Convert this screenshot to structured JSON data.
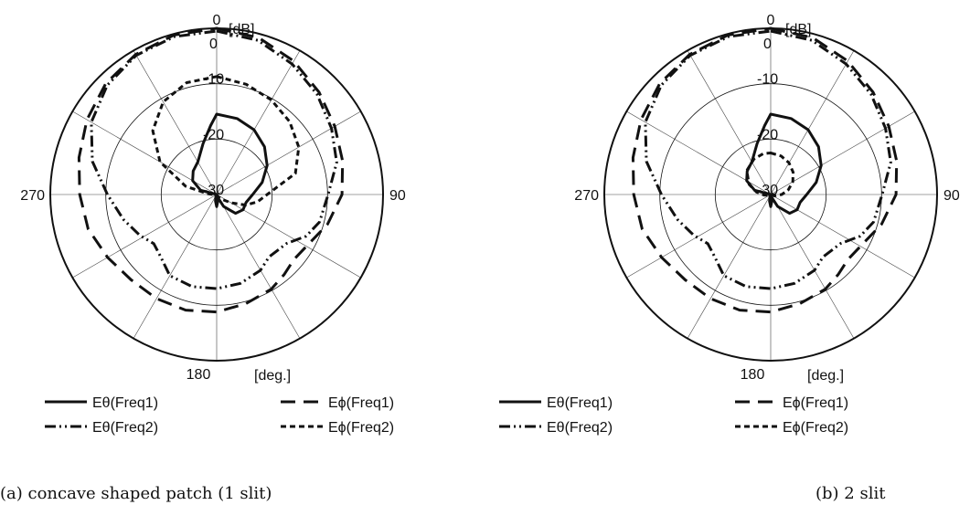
{
  "chart_data": [
    {
      "type": "polar",
      "panel_caption": "(a) concave shaped patch (1 slit)",
      "radial_unit": "[dB]",
      "angular_unit": "[deg.]",
      "rlim": [
        -30,
        0
      ],
      "radial_ticks": [
        {
          "value": 0,
          "label": "0"
        },
        {
          "value": -10,
          "label": "-10"
        },
        {
          "value": -20,
          "label": "-20"
        },
        {
          "value": -30,
          "label": "-30"
        }
      ],
      "angle_labels": [
        {
          "angle": 0,
          "label": "0"
        },
        {
          "angle": 90,
          "label": "90"
        },
        {
          "angle": 180,
          "label": "180"
        },
        {
          "angle": 270,
          "label": "270"
        }
      ],
      "grid": true,
      "legend_position": "bottom",
      "series": [
        {
          "name": "Eθ(Freq1)",
          "style": "solid",
          "points": [
            [
              0,
              -15.5
            ],
            [
              15,
              -15.8
            ],
            [
              30,
              -16.5
            ],
            [
              45,
              -17.8
            ],
            [
              60,
              -19.5
            ],
            [
              75,
              -21.5
            ],
            [
              90,
              -23.5
            ],
            [
              105,
              -24.5
            ],
            [
              120,
              -24.5
            ],
            [
              135,
              -25.2
            ],
            [
              150,
              -27.5
            ],
            [
              160,
              -29.5
            ],
            [
              170,
              -28.8
            ],
            [
              180,
              -27.8
            ],
            [
              190,
              -28.8
            ],
            [
              200,
              -29.5
            ],
            [
              205,
              -30
            ],
            [
              240,
              -30
            ],
            [
              270,
              -30
            ],
            [
              285,
              -27
            ],
            [
              300,
              -25
            ],
            [
              315,
              -24
            ],
            [
              330,
              -23.2
            ],
            [
              345,
              -20.5
            ],
            [
              355,
              -17.5
            ],
            [
              360,
              -15.5
            ]
          ]
        },
        {
          "name": "Eϕ(Freq1)",
          "style": "dash",
          "points": [
            [
              0,
              0
            ],
            [
              15,
              -0.7
            ],
            [
              30,
              -2.2
            ],
            [
              45,
              -3.9
            ],
            [
              60,
              -5.4
            ],
            [
              75,
              -6.5
            ],
            [
              90,
              -7.4
            ],
            [
              105,
              -9.3
            ],
            [
              120,
              -11.3
            ],
            [
              130,
              -11.8
            ],
            [
              140,
              -11.1
            ],
            [
              150,
              -10.3
            ],
            [
              165,
              -9.6
            ],
            [
              180,
              -8.8
            ],
            [
              195,
              -8.4
            ],
            [
              210,
              -8.3
            ],
            [
              225,
              -8.2
            ],
            [
              240,
              -7.3
            ],
            [
              255,
              -6
            ],
            [
              270,
              -5.3
            ],
            [
              285,
              -4.3
            ],
            [
              300,
              -3
            ],
            [
              315,
              -1.7
            ],
            [
              330,
              -0.8
            ],
            [
              345,
              -0.2
            ],
            [
              360,
              0
            ]
          ]
        },
        {
          "name": "Eθ(Freq2)",
          "style": "dashdot",
          "points": [
            [
              0,
              -0.5
            ],
            [
              15,
              -1.2
            ],
            [
              30,
              -2.8
            ],
            [
              45,
              -4.4
            ],
            [
              60,
              -6.1
            ],
            [
              75,
              -7.6
            ],
            [
              90,
              -9.9
            ],
            [
              105,
              -10.8
            ],
            [
              115,
              -12.2
            ],
            [
              125,
              -14.6
            ],
            [
              140,
              -15.3
            ],
            [
              150,
              -14.2
            ],
            [
              165,
              -13.4
            ],
            [
              180,
              -13
            ],
            [
              195,
              -12.8
            ],
            [
              210,
              -13.1
            ],
            [
              222,
              -14.9
            ],
            [
              232,
              -15.6
            ],
            [
              242,
              -14.3
            ],
            [
              255,
              -12.6
            ],
            [
              270,
              -10.3
            ],
            [
              285,
              -6.8
            ],
            [
              300,
              -3.9
            ],
            [
              315,
              -2.1
            ],
            [
              330,
              -1
            ],
            [
              345,
              -0.5
            ],
            [
              360,
              -0.5
            ]
          ]
        },
        {
          "name": "Eϕ(Freq2)",
          "style": "shortdash",
          "points": [
            [
              0,
              -8.7
            ],
            [
              15,
              -9.4
            ],
            [
              30,
              -10.3
            ],
            [
              45,
              -11.4
            ],
            [
              60,
              -12.9
            ],
            [
              75,
              -15.3
            ],
            [
              90,
              -20.9
            ],
            [
              100,
              -22.5
            ],
            [
              110,
              -24.4
            ],
            [
              120,
              -27
            ],
            [
              130,
              -28.5
            ],
            [
              145,
              -29.5
            ],
            [
              180,
              -30
            ],
            [
              230,
              -30
            ],
            [
              260,
              -29.6
            ],
            [
              275,
              -28.4
            ],
            [
              285,
              -24.2
            ],
            [
              300,
              -18.2
            ],
            [
              315,
              -13.7
            ],
            [
              330,
              -10.7
            ],
            [
              345,
              -9.1
            ],
            [
              360,
              -8.7
            ]
          ]
        }
      ]
    },
    {
      "type": "polar",
      "panel_caption": "(b) 2 slit",
      "radial_unit": "[dB]",
      "angular_unit": "[deg.]",
      "rlim": [
        -30,
        0
      ],
      "radial_ticks": [
        {
          "value": 0,
          "label": "0"
        },
        {
          "value": -10,
          "label": "-10"
        },
        {
          "value": -20,
          "label": "-20"
        },
        {
          "value": -30,
          "label": "-30"
        }
      ],
      "angle_labels": [
        {
          "angle": 0,
          "label": "0"
        },
        {
          "angle": 90,
          "label": "90"
        },
        {
          "angle": 180,
          "label": "180"
        },
        {
          "angle": 270,
          "label": "270"
        }
      ],
      "grid": true,
      "legend_position": "bottom",
      "series": [
        {
          "name": "Eθ(Freq1)",
          "style": "solid",
          "points": [
            [
              0,
              -15.5
            ],
            [
              15,
              -15.8
            ],
            [
              30,
              -16.5
            ],
            [
              45,
              -17.8
            ],
            [
              60,
              -19.5
            ],
            [
              75,
              -21.5
            ],
            [
              90,
              -23.5
            ],
            [
              105,
              -24.5
            ],
            [
              120,
              -24.5
            ],
            [
              135,
              -25.2
            ],
            [
              150,
              -27.5
            ],
            [
              160,
              -29.5
            ],
            [
              170,
              -28.8
            ],
            [
              180,
              -27.8
            ],
            [
              190,
              -28.8
            ],
            [
              200,
              -29.5
            ],
            [
              205,
              -30
            ],
            [
              240,
              -30
            ],
            [
              270,
              -30
            ],
            [
              285,
              -27
            ],
            [
              300,
              -25
            ],
            [
              315,
              -24
            ],
            [
              330,
              -23.2
            ],
            [
              345,
              -20.5
            ],
            [
              355,
              -17.5
            ],
            [
              360,
              -15.5
            ]
          ]
        },
        {
          "name": "Eϕ(Freq1)",
          "style": "dash",
          "points": [
            [
              0,
              0
            ],
            [
              15,
              -0.7
            ],
            [
              30,
              -2.2
            ],
            [
              45,
              -3.9
            ],
            [
              60,
              -5.4
            ],
            [
              75,
              -6.5
            ],
            [
              90,
              -7.4
            ],
            [
              105,
              -9.3
            ],
            [
              120,
              -11.3
            ],
            [
              130,
              -11.8
            ],
            [
              140,
              -11.1
            ],
            [
              150,
              -10.3
            ],
            [
              165,
              -9.6
            ],
            [
              180,
              -8.8
            ],
            [
              195,
              -8.4
            ],
            [
              210,
              -8.3
            ],
            [
              225,
              -8.2
            ],
            [
              240,
              -7.3
            ],
            [
              255,
              -6
            ],
            [
              270,
              -5.3
            ],
            [
              285,
              -4.3
            ],
            [
              300,
              -3
            ],
            [
              315,
              -1.7
            ],
            [
              330,
              -0.8
            ],
            [
              345,
              -0.2
            ],
            [
              360,
              0
            ]
          ]
        },
        {
          "name": "Eθ(Freq2)",
          "style": "dashdot",
          "points": [
            [
              0,
              -0.5
            ],
            [
              15,
              -1.2
            ],
            [
              30,
              -2.8
            ],
            [
              45,
              -4.4
            ],
            [
              60,
              -6.1
            ],
            [
              75,
              -7.6
            ],
            [
              90,
              -9.9
            ],
            [
              105,
              -10.8
            ],
            [
              115,
              -12.2
            ],
            [
              125,
              -14.6
            ],
            [
              140,
              -15.3
            ],
            [
              150,
              -14.2
            ],
            [
              165,
              -13.4
            ],
            [
              180,
              -13
            ],
            [
              195,
              -12.8
            ],
            [
              210,
              -13.1
            ],
            [
              222,
              -14.9
            ],
            [
              232,
              -15.6
            ],
            [
              242,
              -14.3
            ],
            [
              255,
              -12.6
            ],
            [
              270,
              -10.3
            ],
            [
              285,
              -6.8
            ],
            [
              300,
              -3.9
            ],
            [
              315,
              -2.1
            ],
            [
              330,
              -1
            ],
            [
              345,
              -0.5
            ],
            [
              360,
              -0.5
            ]
          ]
        },
        {
          "name": "Eϕ(Freq2)",
          "style": "shortdash",
          "points": [
            [
              0,
              -22.5
            ],
            [
              15,
              -22.8
            ],
            [
              30,
              -23.4
            ],
            [
              45,
              -24.3
            ],
            [
              60,
              -25.4
            ],
            [
              75,
              -26.7
            ],
            [
              90,
              -28
            ],
            [
              110,
              -29.3
            ],
            [
              130,
              -30
            ],
            [
              230,
              -30
            ],
            [
              250,
              -29.6
            ],
            [
              265,
              -28.8
            ],
            [
              280,
              -27.4
            ],
            [
              295,
              -25.7
            ],
            [
              315,
              -23.9
            ],
            [
              335,
              -22.9
            ],
            [
              350,
              -22.5
            ],
            [
              360,
              -22.5
            ]
          ]
        }
      ]
    }
  ]
}
